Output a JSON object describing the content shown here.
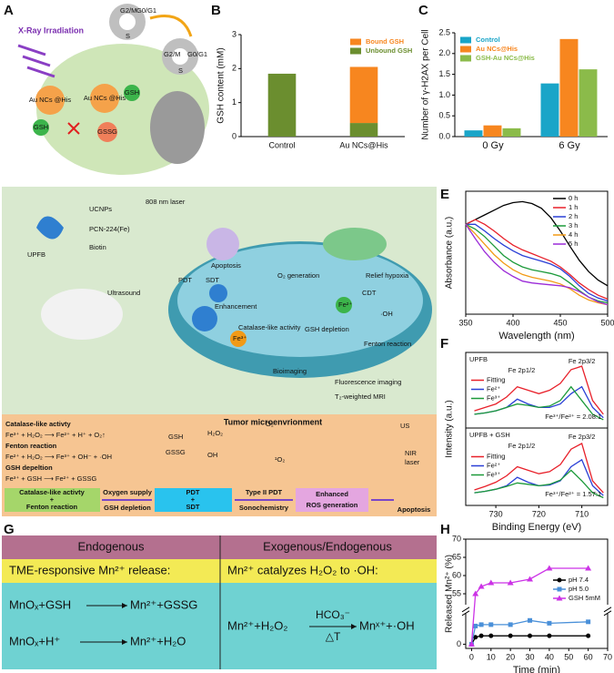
{
  "panel_labels": [
    "A",
    "B",
    "C",
    "D",
    "E",
    "F",
    "G",
    "H"
  ],
  "panel_a": {
    "title": "X-Ray Irradiation",
    "cycle_phases": [
      "G2/M",
      "G0/G1",
      "S"
    ],
    "nanocluster": "Au NCs @His",
    "gsh": "GSH",
    "gssg": "GSSG"
  },
  "chart_data": [
    {
      "type": "bar",
      "stacked": true,
      "categories": [
        "Control",
        "Au NCs@His"
      ],
      "ylabel": "GSH content (mM)",
      "series": [
        {
          "name": "Unbound GSH",
          "color": "#6b8e2f",
          "values": [
            1.85,
            0.4
          ]
        },
        {
          "name": "Bound GSH",
          "color": "#f7861f",
          "values": [
            0,
            1.65
          ]
        }
      ],
      "ylim": [
        0,
        3
      ],
      "yticks": [
        0,
        1,
        2,
        3
      ],
      "legend": "upper right"
    },
    {
      "type": "bar",
      "stacked": false,
      "categories": [
        "0 Gy",
        "6 Gy"
      ],
      "ylabel": "Number of γ-H2AX per Cell",
      "series": [
        {
          "name": "Control",
          "color": "#1aa5c8",
          "values": [
            0.15,
            1.28
          ]
        },
        {
          "name": "Au NCs@His",
          "color": "#f7861f",
          "values": [
            0.27,
            2.35
          ]
        },
        {
          "name": "GSH-Au NCs@His",
          "color": "#8bbb4a",
          "values": [
            0.2,
            1.62
          ]
        }
      ],
      "ylim": [
        0,
        2.5
      ],
      "yticks": [
        {
          "value": 0,
          "label": "0.0"
        },
        0.5,
        {
          "value": 1,
          "label": "1.0"
        },
        1.5,
        {
          "value": 2,
          "label": "2.0"
        },
        2.5
      ],
      "legend": "upper left"
    },
    {
      "type": "line",
      "xlabel": "Wavelength (nm)",
      "ylabel": "Absorbance (a.u.)",
      "x": [
        350,
        360,
        370,
        380,
        390,
        400,
        410,
        420,
        430,
        440,
        450,
        460,
        470,
        480,
        490,
        500
      ],
      "series": [
        {
          "name": "0 h",
          "color": "#000000",
          "values": [
            0.95,
            1.0,
            1.05,
            1.1,
            1.15,
            1.18,
            1.19,
            1.17,
            1.12,
            1.02,
            0.88,
            0.72,
            0.57,
            0.45,
            0.36,
            0.3
          ]
        },
        {
          "name": "1 h",
          "color": "#e8202a",
          "values": [
            0.95,
            1.0,
            0.95,
            0.88,
            0.8,
            0.73,
            0.68,
            0.64,
            0.6,
            0.56,
            0.5,
            0.42,
            0.33,
            0.26,
            0.2,
            0.16
          ]
        },
        {
          "name": "2 h",
          "color": "#2a3fd6",
          "values": [
            0.95,
            0.95,
            0.88,
            0.8,
            0.73,
            0.67,
            0.62,
            0.59,
            0.56,
            0.53,
            0.48,
            0.4,
            0.3,
            0.22,
            0.17,
            0.14
          ]
        },
        {
          "name": "3 h",
          "color": "#1c9a3a",
          "values": [
            0.95,
            0.9,
            0.82,
            0.72,
            0.62,
            0.55,
            0.5,
            0.47,
            0.45,
            0.43,
            0.4,
            0.33,
            0.25,
            0.18,
            0.14,
            0.12
          ]
        },
        {
          "name": "4 h",
          "color": "#f29a16",
          "values": [
            0.95,
            0.85,
            0.74,
            0.63,
            0.54,
            0.47,
            0.42,
            0.39,
            0.37,
            0.35,
            0.32,
            0.27,
            0.2,
            0.15,
            0.12,
            0.1
          ]
        },
        {
          "name": "5 h",
          "color": "#9b2bd8",
          "values": [
            0.95,
            0.8,
            0.66,
            0.55,
            0.46,
            0.4,
            0.35,
            0.33,
            0.32,
            0.31,
            0.3,
            0.28,
            0.24,
            0.18,
            0.13,
            0.1
          ]
        }
      ],
      "xlim": [
        350,
        500
      ],
      "xticks": [
        350,
        400,
        450,
        500
      ],
      "ylim": [
        0,
        1.3
      ],
      "legend": "upper right"
    },
    {
      "type": "line",
      "ylabel": "Intensity (a.u.)",
      "subtitle": "UPFB",
      "annotations": [
        "Fe 2p1/2",
        "Fe 2p3/2",
        "Fe³⁺/Fe²⁺ = 2.08:1"
      ],
      "x": [
        735,
        732.5,
        730,
        727.5,
        725,
        722.5,
        720,
        717.5,
        715,
        712.5,
        710,
        707.5,
        705
      ],
      "series": [
        {
          "name": "Fitting",
          "color": "#e8202a",
          "values": [
            0.25,
            0.3,
            0.35,
            0.45,
            0.6,
            0.55,
            0.5,
            0.55,
            0.65,
            0.85,
            0.9,
            0.4,
            0.2
          ]
        },
        {
          "name": "Fe²⁺",
          "color": "#2a3fd6",
          "values": [
            0.2,
            0.22,
            0.25,
            0.3,
            0.42,
            0.35,
            0.3,
            0.3,
            0.35,
            0.5,
            0.6,
            0.3,
            0.15
          ]
        },
        {
          "name": "Fe³⁺",
          "color": "#1c9a3a",
          "values": [
            0.2,
            0.22,
            0.25,
            0.3,
            0.35,
            0.33,
            0.3,
            0.32,
            0.4,
            0.6,
            0.4,
            0.2,
            0.12
          ]
        }
      ],
      "xlim": [
        737,
        704
      ],
      "ylim": [
        0,
        1.1
      ],
      "legend": "center left"
    },
    {
      "type": "line",
      "xlabel": "Binding Energy (eV)",
      "subtitle": "UPFB + GSH",
      "annotations": [
        "Fe 2p1/2",
        "Fe 2p3/2",
        "Fe³⁺/Fe²⁺ = 1.57:1"
      ],
      "x": [
        735,
        732.5,
        730,
        727.5,
        725,
        722.5,
        720,
        717.5,
        715,
        712.5,
        710,
        707.5,
        705
      ],
      "series": [
        {
          "name": "Fitting",
          "color": "#e8202a",
          "values": [
            0.22,
            0.27,
            0.33,
            0.42,
            0.55,
            0.5,
            0.45,
            0.48,
            0.58,
            0.8,
            0.88,
            0.35,
            0.18
          ]
        },
        {
          "name": "Fe²⁺",
          "color": "#2a3fd6",
          "values": [
            0.18,
            0.2,
            0.23,
            0.28,
            0.4,
            0.33,
            0.28,
            0.29,
            0.35,
            0.55,
            0.65,
            0.28,
            0.14
          ]
        },
        {
          "name": "Fe³⁺",
          "color": "#1c9a3a",
          "values": [
            0.18,
            0.2,
            0.23,
            0.27,
            0.32,
            0.3,
            0.28,
            0.3,
            0.36,
            0.5,
            0.35,
            0.18,
            0.11
          ]
        }
      ],
      "xlim": [
        737,
        704
      ],
      "xticks": [
        730,
        720,
        710
      ],
      "ylim": [
        0,
        1.1
      ],
      "legend": "center left"
    },
    {
      "type": "line",
      "xlabel": "Time (min)",
      "ylabel": "Released Mn²⁺ (%)",
      "x": [
        0,
        2,
        5,
        10,
        20,
        30,
        40,
        60
      ],
      "series": [
        {
          "name": "pH 7.4",
          "color": "#000000",
          "marker": "circle",
          "values": [
            0,
            5,
            6,
            6,
            6,
            6,
            6,
            6
          ]
        },
        {
          "name": "pH 5.0",
          "color": "#4a90d9",
          "marker": "square",
          "values": [
            0,
            13,
            14,
            14,
            14,
            17,
            15,
            16
          ]
        },
        {
          "name": "GSH 5mM",
          "color": "#cc33e6",
          "marker": "triangle",
          "values": [
            0,
            55,
            57,
            58,
            58,
            59,
            62,
            62
          ]
        }
      ],
      "xlim": [
        -3,
        70
      ],
      "xticks": [
        0,
        10,
        20,
        30,
        40,
        50,
        60,
        70
      ],
      "ylim": [
        -3,
        70
      ],
      "ybreak": [
        22,
        52
      ],
      "yticks": [
        0,
        55,
        60,
        65,
        70
      ],
      "legend": "center right"
    }
  ],
  "panel_d": {
    "labels": [
      "UCNPs",
      "PCN-224(Fe)",
      "Biotin",
      "UPFB",
      "808 nm laser",
      "Ultrasound",
      "Apoptosis",
      "PDT",
      "SDT",
      "Enhancement",
      "O₂ generation",
      "Relief hypoxia",
      "CDT",
      "·OH",
      "Catalase-like activity",
      "GSH depletion",
      "Fenton reaction",
      "Fe²⁺",
      "Fe³⁺",
      "Bioimaging",
      "Fluorescence imaging",
      "T₂-weighted MRI"
    ],
    "microenvironment": {
      "title": "Tumor microenvrionment",
      "reactions": [
        "Catalase-like activty",
        "Fe³⁺ + H₂O₂ ⟶ Fe²⁺ + H⁺ + O₂↑",
        "Fenton reaction",
        "Fe²⁺ + H₂O₂ ⟶ Fe³⁺ + OH⁻ + ·OH",
        "GSH depeltion",
        "Fe³⁺ + GSH ⟶ Fe²⁺ + GSSG"
      ],
      "species": [
        "GSH",
        "GSSG",
        "H₂O₂",
        "OH",
        "O₂",
        "¹O₂",
        "US",
        "NIR",
        "laser"
      ],
      "flow": [
        "Catalase-like activty",
        "+",
        "Fenton reaction",
        "Oxygen supply",
        "GSH depletion",
        "PDT",
        "+",
        "SDT",
        "Type II PDT",
        "Sonochemistry",
        "Enhanced",
        "ROS generation",
        "Apoptosis"
      ]
    }
  },
  "table": {
    "header": [
      "Endogenous",
      "Exogenous/Endogenous"
    ],
    "subheader": [
      "TME-responsive Mn²⁺ release:",
      "Mn²⁺ catalyzes H₂O₂ to ·OH:"
    ],
    "left_reactions": [
      {
        "reactants": "MnOₓ+GSH",
        "products": "Mn²⁺+GSSG"
      },
      {
        "reactants": "MnOₓ+H⁺",
        "products": "Mn²⁺+H₂O"
      }
    ],
    "right_reaction": {
      "reactants": "Mn²⁺+H₂O₂",
      "catalyst": "HCO₃⁻",
      "condition": "△T",
      "products": "Mnˣ⁺+·OH"
    }
  }
}
